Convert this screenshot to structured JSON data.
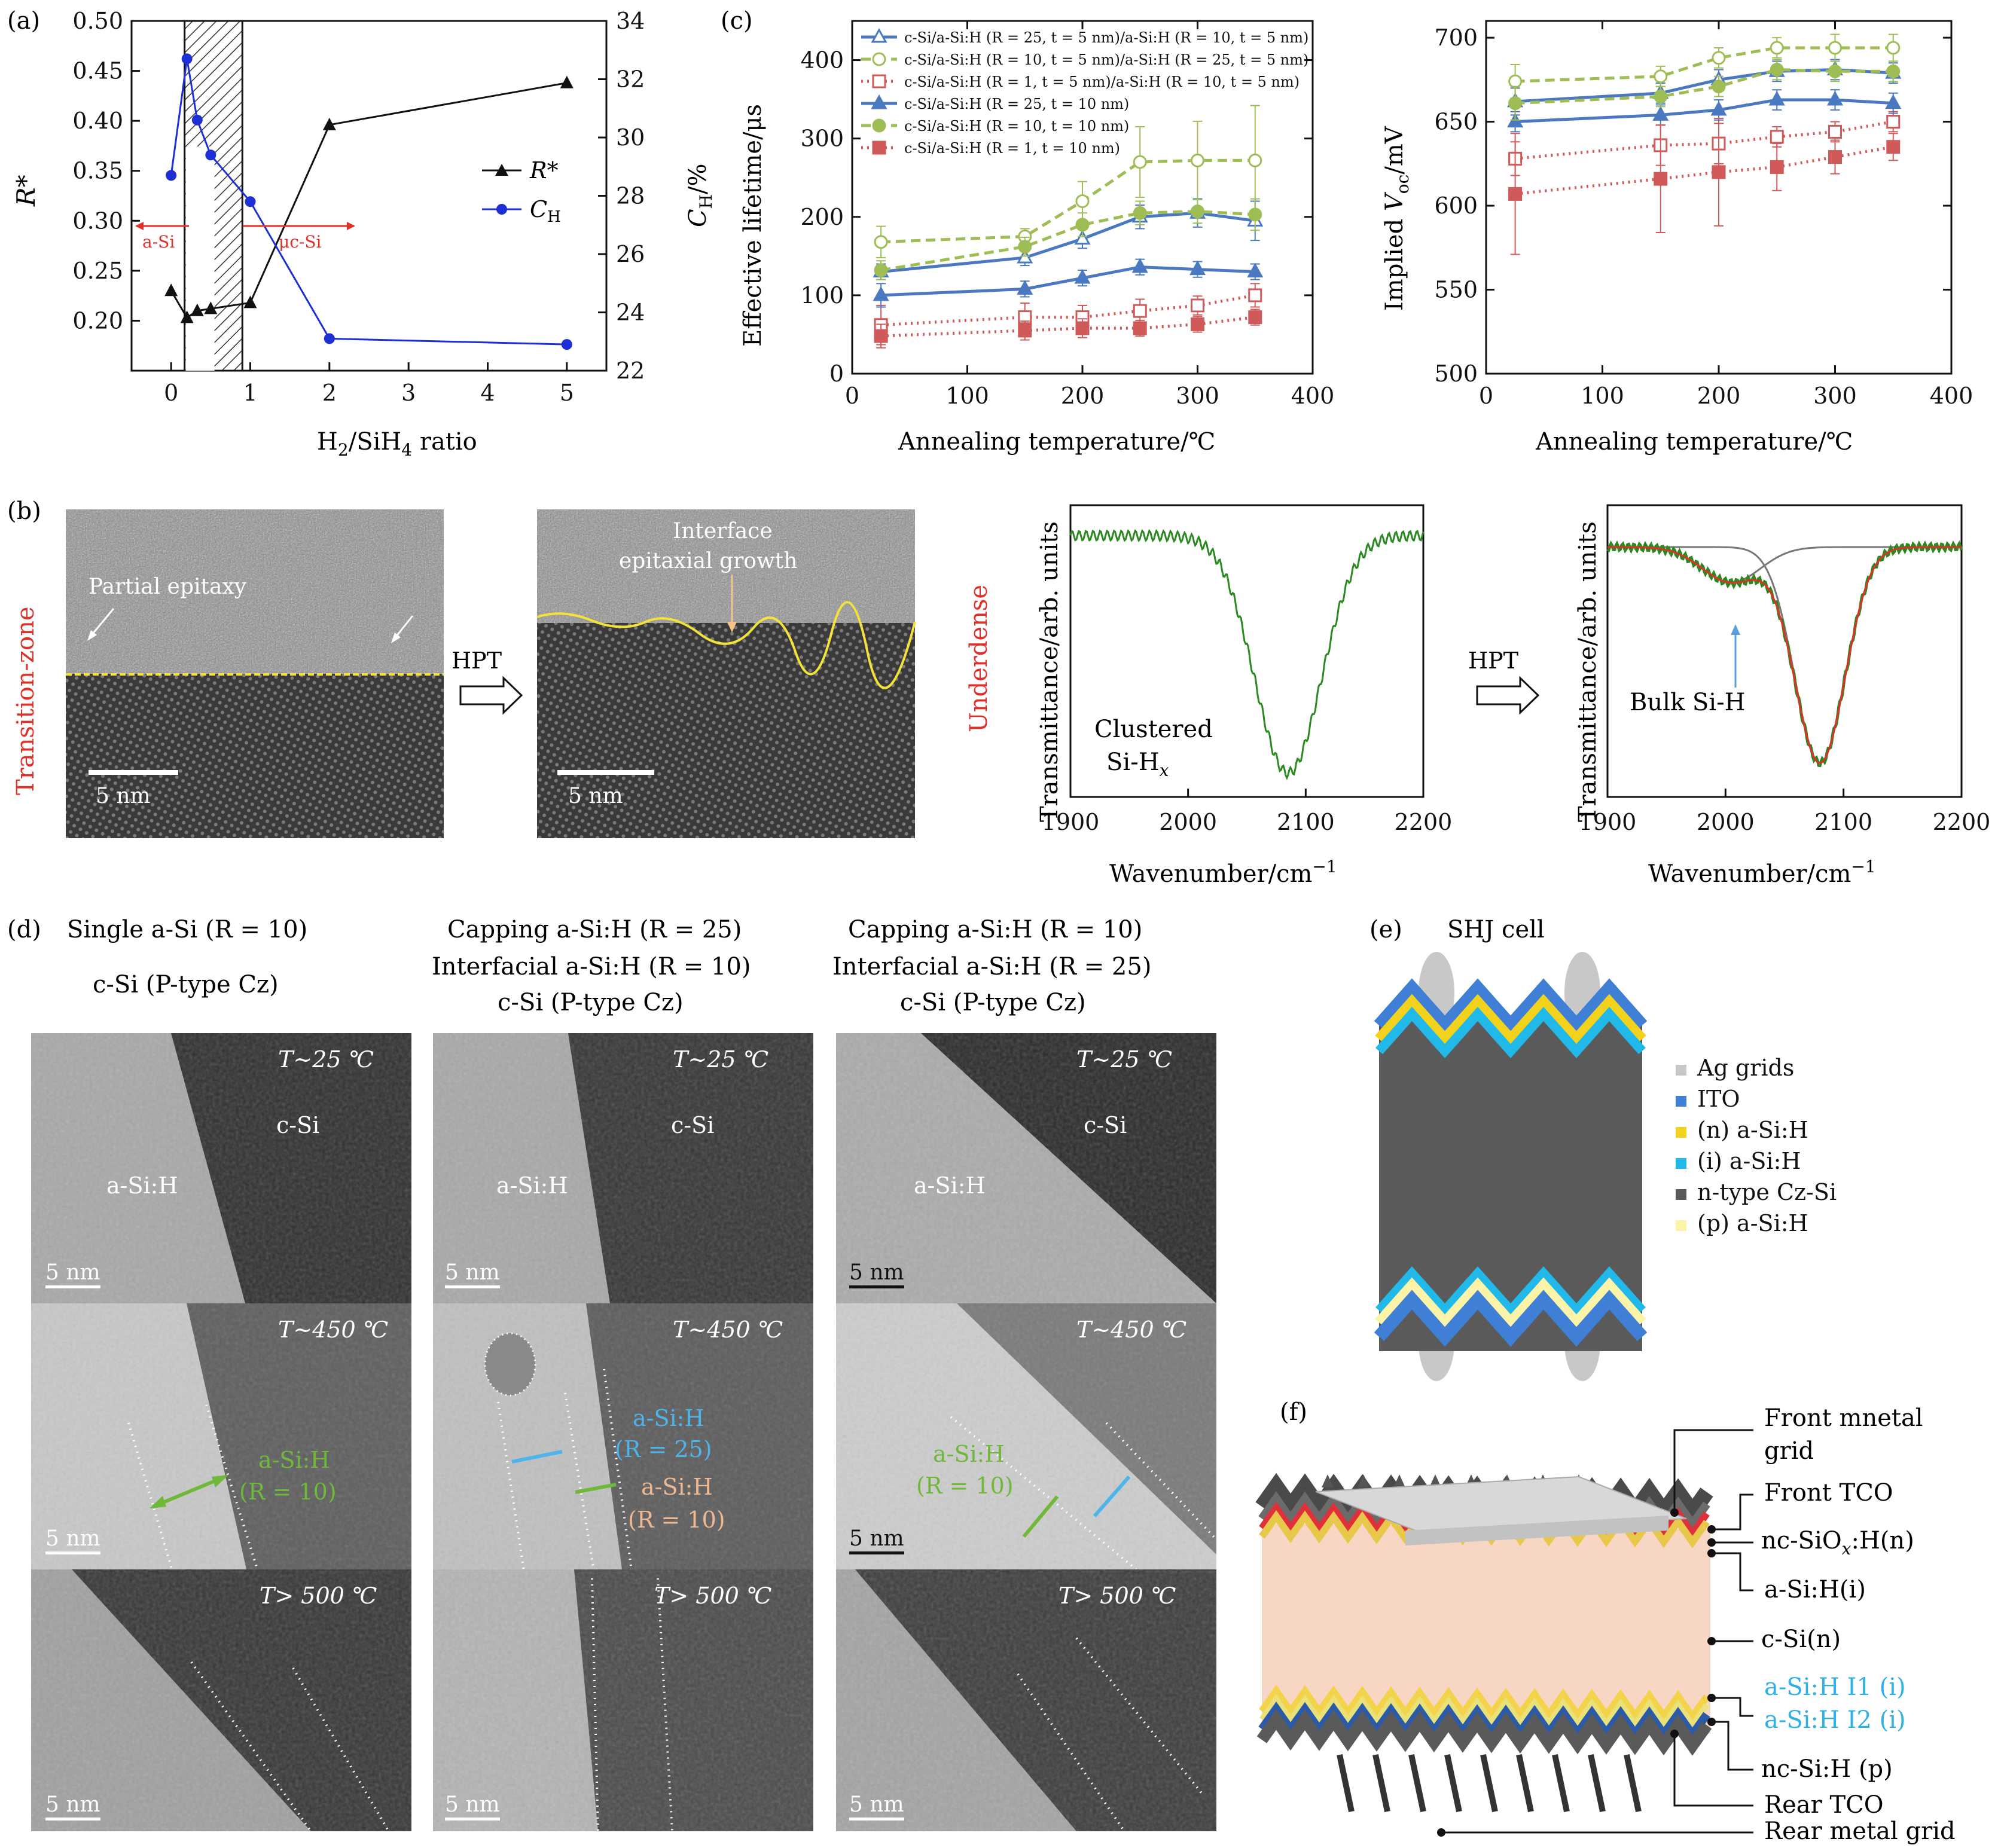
{
  "panel_labels": {
    "a": "(a)",
    "b": "(b)",
    "c": "(c)",
    "d": "(d)",
    "e": "(e)",
    "f": "(f)"
  },
  "colors": {
    "black": "#111111",
    "blue": "#1f2fd6",
    "red": "#e0302a",
    "green": "#2a8a1f",
    "olive": "#9fbd55",
    "steel": "#4a79c2",
    "brick": "#d05a5a",
    "yellow": "#e8d82a",
    "cyan": "#7ec8f0",
    "salmon": "#f4b59a"
  },
  "chart_data": [
    {
      "id": "a",
      "type": "line",
      "xlabel_pre": "H",
      "xlabel_sub1": "2",
      "xlabel_mid": "/SiH",
      "xlabel_sub2": "4",
      "xlabel_post": " ratio",
      "ylabel_left": "R*",
      "ylabel_right_main": "C",
      "ylabel_right_sub": "H",
      "ylabel_right_tail": "/%",
      "xlim": [
        -0.5,
        5.5
      ],
      "xticks": [
        "0",
        "1",
        "2",
        "3",
        "4",
        "5"
      ],
      "ylim_left": [
        0.15,
        0.5
      ],
      "yticks_left": [
        "0.20",
        "0.25",
        "0.30",
        "0.35",
        "0.40",
        "0.45",
        "0.50"
      ],
      "ylim_right": [
        22,
        34
      ],
      "yticks_right": [
        "22",
        "24",
        "26",
        "28",
        "30",
        "32",
        "34"
      ],
      "hatch_range": [
        0.17,
        0.9
      ],
      "region_left": "a-Si",
      "region_right": "μc-Si",
      "series": [
        {
          "name": "R*",
          "axis": "left",
          "color": "#111111",
          "marker": "triangle",
          "x": [
            0,
            0.2,
            0.33,
            0.5,
            1,
            2,
            5
          ],
          "values": [
            0.23,
            0.203,
            0.21,
            0.212,
            0.218,
            0.396,
            0.438
          ]
        },
        {
          "name": "C_H",
          "axis": "right",
          "color": "#1f2fd6",
          "marker": "circle",
          "x": [
            0,
            0.2,
            0.33,
            0.5,
            1,
            2,
            5
          ],
          "values": [
            28.7,
            32.7,
            30.6,
            29.4,
            27.8,
            23.1,
            22.9
          ]
        }
      ],
      "legend": [
        {
          "label_main": "R*",
          "label_sub": ""
        },
        {
          "label_main": "C",
          "label_sub": "H"
        }
      ]
    },
    {
      "id": "c1",
      "type": "line",
      "xlabel": "Annealing temperature/℃",
      "ylabel": "Effective lifetime/μs",
      "xlim": [
        0,
        400
      ],
      "xticks": [
        "0",
        "100",
        "200",
        "300",
        "400"
      ],
      "ylim": [
        0,
        450
      ],
      "yticks": [
        "0",
        "100",
        "200",
        "300",
        "400"
      ],
      "x": [
        25,
        150,
        200,
        250,
        300,
        350
      ],
      "series": [
        {
          "name": "c-Si/a-Si:H (R = 25, t = 5 nm)/a-Si:H (R = 10, t = 5 nm)",
          "color": "#4a79c2",
          "dash": "solid",
          "marker": "triangle-open",
          "values": [
            130,
            148,
            172,
            200,
            205,
            195
          ]
        },
        {
          "name": "c-Si/a-Si:H (R = 10, t = 5 nm)/a-Si:H (R = 25, t = 5 nm)",
          "color": "#9fbd55",
          "dash": "dashed",
          "marker": "circle-open",
          "values": [
            168,
            175,
            220,
            270,
            272,
            272
          ]
        },
        {
          "name": "c-Si/a-Si:H (R = 1, t = 5 nm)/a-Si:H (R = 10, t = 5 nm)",
          "color": "#d05a5a",
          "dash": "dotted",
          "marker": "square-open",
          "values": [
            62,
            72,
            72,
            80,
            87,
            100
          ]
        },
        {
          "name": "c-Si/a-Si:H (R = 25, t = 10 nm)",
          "color": "#4a79c2",
          "dash": "solid",
          "marker": "triangle",
          "values": [
            100,
            108,
            122,
            136,
            133,
            130
          ]
        },
        {
          "name": "c-Si/a-Si:H (R = 10, t = 10 nm)",
          "color": "#9fbd55",
          "dash": "dashed",
          "marker": "circle",
          "values": [
            132,
            162,
            190,
            205,
            207,
            203
          ]
        },
        {
          "name": "c-Si/a-Si:H (R = 1, t = 10 nm)",
          "color": "#d05a5a",
          "dash": "dotted",
          "marker": "square",
          "values": [
            48,
            55,
            58,
            58,
            63,
            72
          ]
        }
      ]
    },
    {
      "id": "c2",
      "type": "line",
      "xlabel": "Annealing temperature/℃",
      "ylabel_pre": "Implied ",
      "ylabel_v": "V",
      "ylabel_sub": "oc",
      "ylabel_post": "/mV",
      "xlim": [
        0,
        400
      ],
      "xticks": [
        "0",
        "100",
        "200",
        "300",
        "400"
      ],
      "ylim": [
        500,
        710
      ],
      "yticks": [
        "500",
        "550",
        "600",
        "650",
        "700"
      ],
      "x": [
        25,
        150,
        200,
        250,
        300,
        350
      ],
      "series": [
        {
          "name": "R25/R10 5nm",
          "color": "#4a79c2",
          "dash": "solid",
          "marker": "triangle-open",
          "values": [
            662,
            667,
            675,
            680,
            681,
            679
          ]
        },
        {
          "name": "R10/R25 5nm",
          "color": "#9fbd55",
          "dash": "dashed",
          "marker": "circle-open",
          "values": [
            674,
            677,
            688,
            694,
            694,
            694
          ]
        },
        {
          "name": "R1/R10 5nm",
          "color": "#d05a5a",
          "dash": "dotted",
          "marker": "square-open",
          "values": [
            628,
            636,
            637,
            641,
            644,
            650
          ]
        },
        {
          "name": "R25 10nm",
          "color": "#4a79c2",
          "dash": "solid",
          "marker": "triangle",
          "values": [
            650,
            654,
            657,
            663,
            663,
            661
          ]
        },
        {
          "name": "R10 10nm",
          "color": "#9fbd55",
          "dash": "dashed",
          "marker": "circle",
          "values": [
            661,
            665,
            671,
            681,
            680,
            680
          ]
        },
        {
          "name": "R1 10nm",
          "color": "#d05a5a",
          "dash": "dotted",
          "marker": "square",
          "values": [
            607,
            616,
            620,
            623,
            629,
            635
          ]
        }
      ]
    },
    {
      "id": "b1",
      "type": "line",
      "xlabel": "Wavenumber/cm",
      "xlabel_sup": "−1",
      "ylabel": "Transmittance/arb. units",
      "xlim": [
        1900,
        2200
      ],
      "xticks": [
        "1900",
        "2000",
        "2100",
        "2200"
      ],
      "annotation_1": "Clustered",
      "annotation_2_pre": "Si-H",
      "annotation_2_sub": "x"
    },
    {
      "id": "b2",
      "type": "line",
      "xlabel": "Wavenumber/cm",
      "xlabel_sup": "−1",
      "ylabel": "Transmittance/arb. units",
      "xlim": [
        1900,
        2200
      ],
      "xticks": [
        "1900",
        "2000",
        "2100",
        "2200"
      ],
      "annotation": "Bulk Si-H"
    }
  ],
  "panel_b": {
    "side_label_left": "Transition-zone",
    "side_label_right": "Underdense",
    "hpt": "HPT",
    "tem1_label": "Partial epitaxy",
    "tem2_label_1": "Interface",
    "tem2_label_2": "epitaxial growth",
    "scale": "5 nm"
  },
  "panel_d": {
    "col1_head": [
      "Single a-Si (R = 10)",
      "c-Si (P-type Cz)"
    ],
    "col2_head": [
      "Capping a-Si:H (R = 25)",
      "Interfacial a-Si:H (R = 10)",
      "c-Si (P-type Cz)"
    ],
    "col3_head": [
      "Capping a-Si:H (R = 10)",
      "Interfacial a-Si:H (R = 25)",
      "c-Si (P-type Cz)"
    ],
    "temp_25": "T∼25 ℃",
    "temp_450": "T∼450 ℃",
    "temp_500": "T> 500 ℃",
    "csi": "c-Si",
    "asih": "a-Si:H",
    "scale": "5 nm",
    "r10_a": "a-Si:H",
    "r10_b": "(R = 10)",
    "r25_a": "a-Si:H",
    "r25_b": "(R = 25)"
  },
  "panel_e": {
    "title": "SHJ cell",
    "legend": [
      {
        "label": "Ag grids",
        "color": "#c8c8c8"
      },
      {
        "label": "ITO",
        "color": "#3f7fd6"
      },
      {
        "label": "(n) a-Si:H",
        "color": "#f2d21c"
      },
      {
        "label": "(i) a-Si:H",
        "color": "#21b8ea"
      },
      {
        "label": "n-type Cz-Si",
        "color": "#5a5a5a"
      },
      {
        "label": "(p) a-Si:H",
        "color": "#fbf3a8"
      }
    ]
  },
  "panel_f": {
    "labels": {
      "front_metal_1": "Front mnetal",
      "front_metal_2": "grid",
      "front_tco": "Front TCO",
      "nc_siox_pre": "nc-SiO",
      "nc_siox_sub": "x",
      "nc_siox_post": ":H(n)",
      "asi_i": "a-Si:H(i)",
      "csi_n": "c-Si(n)",
      "asi_i1": "a-Si:H I1 (i)",
      "asi_i2": "a-Si:H I2 (i)",
      "nc_si_p": "nc-Si:H (p)",
      "rear_tco": "Rear TCO",
      "rear_metal": "Rear metal grid"
    }
  }
}
